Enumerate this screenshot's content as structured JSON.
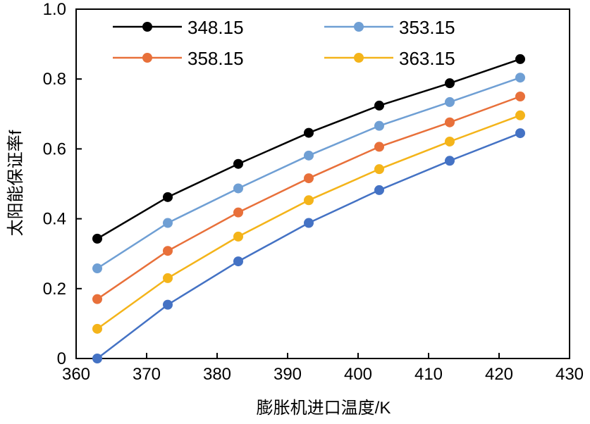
{
  "chart_data": {
    "type": "line",
    "title": "",
    "xlabel": "膨胀机进口温度/K",
    "ylabel": "太阳能保证率f",
    "xlim": [
      360,
      430
    ],
    "ylim": [
      0,
      1.0
    ],
    "x_ticks": [
      360,
      370,
      380,
      390,
      400,
      410,
      420,
      430
    ],
    "y_ticks": [
      0,
      0.2,
      0.4,
      0.6,
      0.8,
      1.0
    ],
    "x_tick_labels": [
      "360",
      "370",
      "380",
      "390",
      "400",
      "410",
      "420",
      "430"
    ],
    "y_tick_labels": [
      "0",
      "0.2",
      "0.4",
      "0.6",
      "0.8",
      "1.0"
    ],
    "grid": false,
    "legend_position": "top",
    "x": [
      363,
      373,
      383,
      393,
      403,
      413,
      423
    ],
    "series": [
      {
        "name": "348.15",
        "color": "#000000",
        "values": [
          0.343,
          0.462,
          0.557,
          0.646,
          0.724,
          0.788,
          0.857
        ]
      },
      {
        "name": "353.15",
        "color": "#6f9fd4",
        "values": [
          0.258,
          0.388,
          0.487,
          0.581,
          0.666,
          0.734,
          0.804
        ]
      },
      {
        "name": "358.15",
        "color": "#e8703a",
        "values": [
          0.17,
          0.308,
          0.418,
          0.516,
          0.606,
          0.676,
          0.75
        ]
      },
      {
        "name": "363.15",
        "color": "#f4b41a",
        "values": [
          0.085,
          0.23,
          0.349,
          0.453,
          0.542,
          0.621,
          0.696
        ]
      },
      {
        "name": "",
        "color": "#4472c4",
        "values": [
          0.0,
          0.154,
          0.278,
          0.388,
          0.482,
          0.566,
          0.645
        ]
      }
    ]
  }
}
